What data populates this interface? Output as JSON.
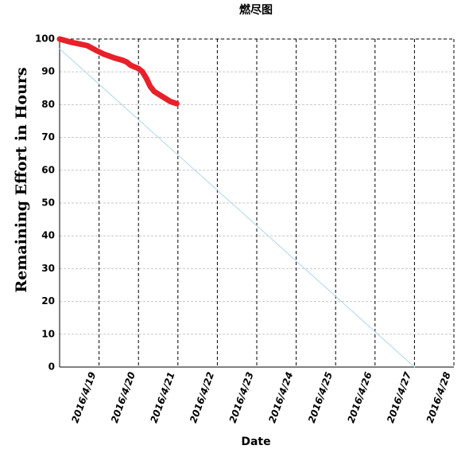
{
  "chart_data": {
    "type": "line",
    "title": "燃尽图",
    "x_label": "Date",
    "y_label": "Remaining Effort in Hours",
    "xlim": [
      0,
      10
    ],
    "xticks": [
      {
        "value": 1,
        "label": "2016/4/19"
      },
      {
        "value": 2,
        "label": "2016/4/20"
      },
      {
        "value": 3,
        "label": "2016/4/21"
      },
      {
        "value": 4,
        "label": "2016/4/22"
      },
      {
        "value": 5,
        "label": "2016/4/23"
      },
      {
        "value": 6,
        "label": "2016/4/24"
      },
      {
        "value": 7,
        "label": "2016/4/25"
      },
      {
        "value": 8,
        "label": "2016/4/26"
      },
      {
        "value": 9,
        "label": "2016/4/27"
      },
      {
        "value": 10,
        "label": "2016/4/28"
      }
    ],
    "ylim": [
      0,
      100
    ],
    "yticks": [
      0,
      10,
      20,
      30,
      40,
      50,
      60,
      70,
      80,
      90,
      100
    ],
    "grid": true,
    "series": [
      {
        "color": "#add8e6",
        "width": 1,
        "x": [
          0,
          9
        ],
        "values": [
          97,
          0
        ]
      },
      {
        "color": "#e8202a",
        "width": 7,
        "x": [
          0,
          0.3,
          0.5,
          0.7,
          0.9,
          1.1,
          1.4,
          1.6,
          1.7,
          1.8,
          2.0,
          2.1,
          2.2,
          2.3,
          2.4,
          2.6,
          2.8,
          2.97
        ],
        "values": [
          100,
          99,
          98.5,
          98,
          96.7,
          95.5,
          94.2,
          93.5,
          93,
          92,
          91,
          90,
          88,
          85.5,
          84,
          82.5,
          81,
          80.3
        ]
      }
    ]
  }
}
